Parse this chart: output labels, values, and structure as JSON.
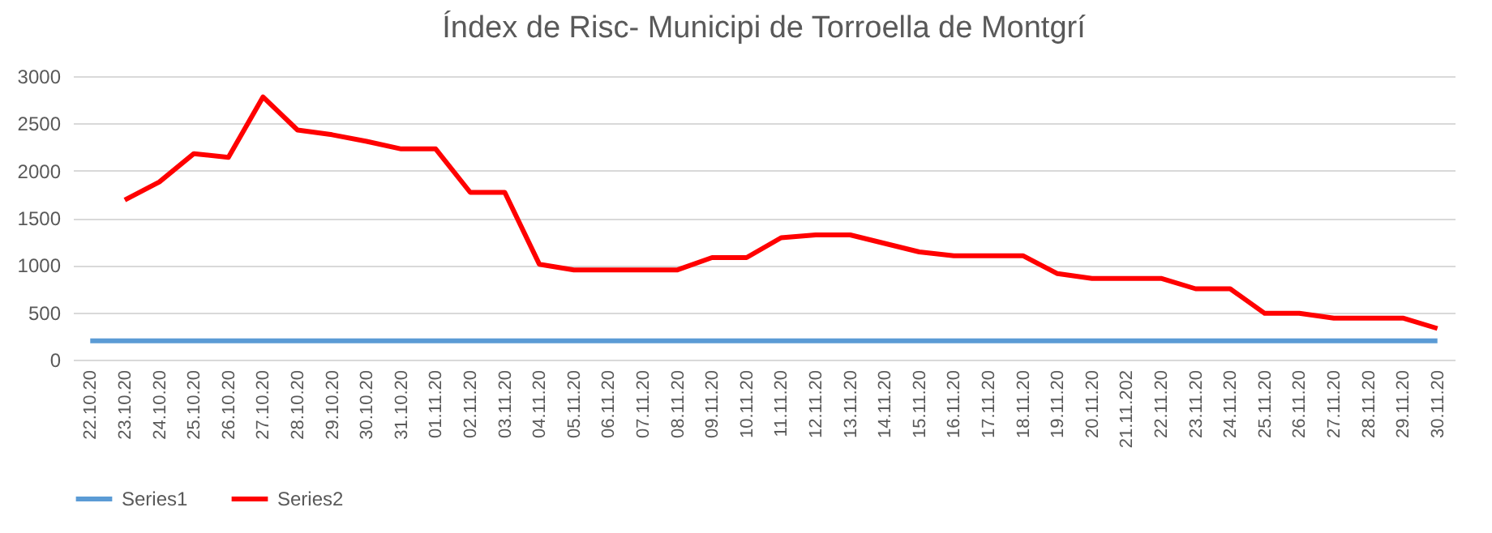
{
  "chart_data": {
    "type": "line",
    "title": "Índex de Risc- Municipi de Torroella de Montgrí",
    "categories": [
      "22.10.20",
      "23.10.20",
      "24.10.20",
      "25.10.20",
      "26.10.20",
      "27.10.20",
      "28.10.20",
      "29.10.20",
      "30.10.20",
      "31.10.20",
      "01.11.20",
      "02.11.20",
      "03.11.20",
      "04.11.20",
      "05.11.20",
      "06.11.20",
      "07.11.20",
      "08.11.20",
      "09.11.20",
      "10.11.20",
      "11.11.20",
      "12.11.20",
      "13.11.20",
      "14.11.20",
      "15.11.20",
      "16.11.20",
      "17.11.20",
      "18.11.20",
      "19.11.20",
      "20.11.20",
      "21.11.202",
      "22.11.20",
      "23.11.20",
      "24.11.20",
      "25.11.20",
      "26.11.20",
      "27.11.20",
      "28.11.20",
      "29.11.20",
      "30.11.20"
    ],
    "series": [
      {
        "name": "Series1",
        "color": "#5b9bd5",
        "values": [
          200,
          200,
          200,
          200,
          200,
          200,
          200,
          200,
          200,
          200,
          200,
          200,
          200,
          200,
          200,
          200,
          200,
          200,
          200,
          200,
          200,
          200,
          200,
          200,
          200,
          200,
          200,
          200,
          200,
          200,
          200,
          200,
          200,
          200,
          200,
          200,
          200,
          200,
          200,
          200
        ]
      },
      {
        "name": "Series2",
        "color": "#ff0000",
        "values": [
          null,
          1690,
          1880,
          2180,
          2140,
          2780,
          2430,
          2380,
          2310,
          2230,
          2230,
          1770,
          1770,
          1010,
          950,
          950,
          950,
          950,
          1080,
          1080,
          1290,
          1320,
          1320,
          1230,
          1140,
          1100,
          1100,
          1100,
          910,
          860,
          860,
          860,
          750,
          750,
          490,
          490,
          440,
          440,
          440,
          330
        ]
      }
    ],
    "ylim": [
      0,
      3000
    ],
    "yticks": [
      0,
      500,
      1000,
      1500,
      2000,
      2500,
      3000
    ],
    "grid": "y",
    "legend": "bottom",
    "marker": "none",
    "line_style": "solid"
  }
}
